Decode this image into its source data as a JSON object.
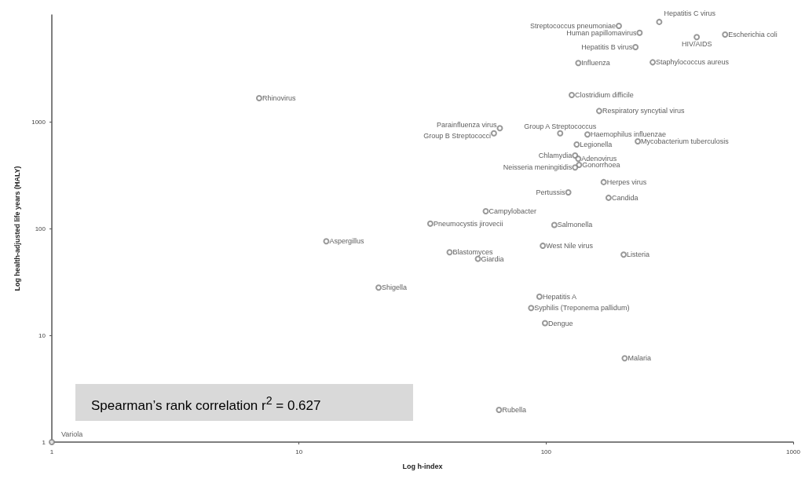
{
  "chart_data": {
    "type": "scatter",
    "xlabel": "Log h-index",
    "ylabel": "Log health-adjusted life years (HALY)",
    "log": "xy",
    "grid": false,
    "marker": "circle",
    "xlim": [
      1,
      1000
    ],
    "xticks": [
      1,
      10,
      100,
      1000
    ],
    "ylim": [
      1,
      10000
    ],
    "yticks": [
      1,
      10,
      100,
      1000
    ],
    "series": [
      {
        "color": "#7f7f7f",
        "x": [
          197,
          287,
          239,
          230,
          530,
          407,
          135,
          270,
          6.9,
          127,
          164,
          65,
          61.5,
          114,
          147,
          235,
          133,
          131,
          135,
          136,
          131,
          171,
          123,
          179,
          57,
          34,
          108,
          12.9,
          97,
          40.7,
          206,
          53,
          21,
          94,
          87,
          99,
          208,
          64.5,
          1
        ],
        "values": [
          7900,
          8600,
          6800,
          5000,
          6550,
          6200,
          3550,
          3600,
          1660,
          1780,
          1260,
          870,
          780,
          780,
          760,
          655,
          612,
          483,
          450,
          394,
          373,
          272,
          218,
          194,
          145,
          111,
          108,
          76,
          69,
          60,
          57,
          52,
          28,
          23,
          18,
          13,
          6.1,
          2.0,
          1
        ]
      }
    ],
    "annotations": [
      {
        "text": "Streptococcus pneumoniae",
        "x": 197,
        "y": 7900
      },
      {
        "text": "Hepatitis C virus",
        "x": 287,
        "y": 8600
      },
      {
        "text": "Human papillomavirus",
        "x": 239,
        "y": 6800
      },
      {
        "text": "Hepatitis B virus",
        "x": 230,
        "y": 5000
      },
      {
        "text": "Escherichia coli",
        "x": 530,
        "y": 6550
      },
      {
        "text": "HIV/AIDS",
        "x": 407,
        "y": 6200
      },
      {
        "text": "Influenza",
        "x": 135,
        "y": 3550
      },
      {
        "text": "Staphylococcus aureus",
        "x": 270,
        "y": 3600
      },
      {
        "text": "Rhinovirus",
        "x": 6.9,
        "y": 1660
      },
      {
        "text": "Clostridium difficile",
        "x": 127,
        "y": 1780
      },
      {
        "text": "Respiratory syncytial virus",
        "x": 164,
        "y": 1260
      },
      {
        "text": "Parainfluenza virus",
        "x": 65,
        "y": 870
      },
      {
        "text": "Group B Streptococci",
        "x": 61.5,
        "y": 780
      },
      {
        "text": "Group A Streptococcus",
        "x": 114,
        "y": 780
      },
      {
        "text": "Haemophilus influenzae",
        "x": 147,
        "y": 760
      },
      {
        "text": "Mycobacterium tuberculosis",
        "x": 235,
        "y": 655
      },
      {
        "text": "Legionella",
        "x": 133,
        "y": 612
      },
      {
        "text": "Chlamydia",
        "x": 131,
        "y": 483
      },
      {
        "text": "Adenovirus",
        "x": 135,
        "y": 450
      },
      {
        "text": "Gonorrhoea",
        "x": 136,
        "y": 394
      },
      {
        "text": "Neisseria meningitidis",
        "x": 131,
        "y": 373
      },
      {
        "text": "Herpes virus",
        "x": 171,
        "y": 272
      },
      {
        "text": "Pertussis",
        "x": 123,
        "y": 218
      },
      {
        "text": "Candida",
        "x": 179,
        "y": 194
      },
      {
        "text": "Campylobacter",
        "x": 57,
        "y": 145
      },
      {
        "text": "Pneumocystis jirovecii",
        "x": 34,
        "y": 111
      },
      {
        "text": "Salmonella",
        "x": 108,
        "y": 108
      },
      {
        "text": "Aspergillus",
        "x": 12.9,
        "y": 76
      },
      {
        "text": "West Nile virus",
        "x": 97,
        "y": 69
      },
      {
        "text": "Blastomyces",
        "x": 40.7,
        "y": 60
      },
      {
        "text": "Listeria",
        "x": 206,
        "y": 57
      },
      {
        "text": "Giardia",
        "x": 53,
        "y": 52
      },
      {
        "text": "Shigella",
        "x": 21,
        "y": 28
      },
      {
        "text": "Hepatitis A",
        "x": 94,
        "y": 23
      },
      {
        "text": "Syphilis (Treponema pallidum)",
        "x": 87,
        "y": 18
      },
      {
        "text": "Dengue",
        "x": 99,
        "y": 13
      },
      {
        "text": "Malaria",
        "x": 208,
        "y": 6.1
      },
      {
        "text": "Rubella",
        "x": 64.5,
        "y": 2.0
      },
      {
        "text": "Variola",
        "x": 1,
        "y": 1
      },
      "Spearman’s rank correlation r$^{2}$ = 0.627"
    ]
  }
}
